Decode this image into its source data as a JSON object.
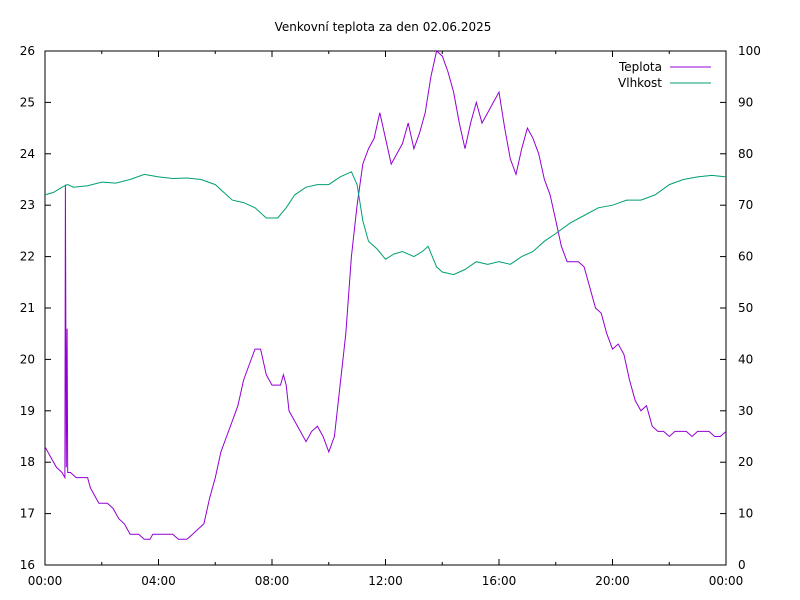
{
  "chart_data": {
    "type": "line",
    "title": "Venkovní teplota za den 02.06.2025",
    "xlabel": "",
    "ylabel": "",
    "y2label": "",
    "x_ticks": [
      "00:00",
      "04:00",
      "08:00",
      "12:00",
      "16:00",
      "20:00",
      "00:00"
    ],
    "xlim_hours": [
      0,
      24
    ],
    "ylim": [
      16,
      26
    ],
    "y_ticks": [
      16,
      17,
      18,
      19,
      20,
      21,
      22,
      23,
      24,
      25,
      26
    ],
    "y2lim": [
      0,
      100
    ],
    "y2_ticks": [
      0,
      10,
      20,
      30,
      40,
      50,
      60,
      70,
      80,
      90,
      100
    ],
    "grid": false,
    "legend_position": "top-right",
    "series": [
      {
        "name": "Teplota",
        "axis": "left",
        "color": "#9400d3",
        "points": [
          [
            0.0,
            18.3
          ],
          [
            0.2,
            18.1
          ],
          [
            0.4,
            17.9
          ],
          [
            0.6,
            17.8
          ],
          [
            0.7,
            17.7
          ],
          [
            0.72,
            23.4
          ],
          [
            0.75,
            17.9
          ],
          [
            0.78,
            20.6
          ],
          [
            0.8,
            17.8
          ],
          [
            0.9,
            17.8
          ],
          [
            1.1,
            17.7
          ],
          [
            1.5,
            17.7
          ],
          [
            1.6,
            17.5
          ],
          [
            1.8,
            17.3
          ],
          [
            1.9,
            17.2
          ],
          [
            2.2,
            17.2
          ],
          [
            2.4,
            17.1
          ],
          [
            2.6,
            16.9
          ],
          [
            2.8,
            16.8
          ],
          [
            3.0,
            16.6
          ],
          [
            3.3,
            16.6
          ],
          [
            3.5,
            16.5
          ],
          [
            3.7,
            16.5
          ],
          [
            3.8,
            16.6
          ],
          [
            4.2,
            16.6
          ],
          [
            4.5,
            16.6
          ],
          [
            4.7,
            16.5
          ],
          [
            5.0,
            16.5
          ],
          [
            5.2,
            16.6
          ],
          [
            5.4,
            16.7
          ],
          [
            5.6,
            16.8
          ],
          [
            5.8,
            17.3
          ],
          [
            6.0,
            17.7
          ],
          [
            6.2,
            18.2
          ],
          [
            6.4,
            18.5
          ],
          [
            6.6,
            18.8
          ],
          [
            6.8,
            19.1
          ],
          [
            7.0,
            19.6
          ],
          [
            7.2,
            19.9
          ],
          [
            7.4,
            20.2
          ],
          [
            7.6,
            20.2
          ],
          [
            7.8,
            19.7
          ],
          [
            8.0,
            19.5
          ],
          [
            8.3,
            19.5
          ],
          [
            8.4,
            19.7
          ],
          [
            8.5,
            19.5
          ],
          [
            8.6,
            19.0
          ],
          [
            8.8,
            18.8
          ],
          [
            9.0,
            18.6
          ],
          [
            9.2,
            18.4
          ],
          [
            9.4,
            18.6
          ],
          [
            9.6,
            18.7
          ],
          [
            9.8,
            18.5
          ],
          [
            10.0,
            18.2
          ],
          [
            10.2,
            18.5
          ],
          [
            10.4,
            19.5
          ],
          [
            10.6,
            20.5
          ],
          [
            10.8,
            22.0
          ],
          [
            11.0,
            23.0
          ],
          [
            11.2,
            23.8
          ],
          [
            11.4,
            24.1
          ],
          [
            11.6,
            24.3
          ],
          [
            11.8,
            24.8
          ],
          [
            12.0,
            24.3
          ],
          [
            12.2,
            23.8
          ],
          [
            12.4,
            24.0
          ],
          [
            12.6,
            24.2
          ],
          [
            12.8,
            24.6
          ],
          [
            13.0,
            24.1
          ],
          [
            13.2,
            24.4
          ],
          [
            13.4,
            24.8
          ],
          [
            13.6,
            25.5
          ],
          [
            13.8,
            26.0
          ],
          [
            14.0,
            25.9
          ],
          [
            14.2,
            25.6
          ],
          [
            14.4,
            25.2
          ],
          [
            14.6,
            24.6
          ],
          [
            14.8,
            24.1
          ],
          [
            15.0,
            24.6
          ],
          [
            15.2,
            25.0
          ],
          [
            15.4,
            24.6
          ],
          [
            15.6,
            24.8
          ],
          [
            15.8,
            25.0
          ],
          [
            16.0,
            25.2
          ],
          [
            16.2,
            24.5
          ],
          [
            16.4,
            23.9
          ],
          [
            16.6,
            23.6
          ],
          [
            16.8,
            24.1
          ],
          [
            17.0,
            24.5
          ],
          [
            17.2,
            24.3
          ],
          [
            17.4,
            24.0
          ],
          [
            17.6,
            23.5
          ],
          [
            17.8,
            23.2
          ],
          [
            18.0,
            22.7
          ],
          [
            18.2,
            22.2
          ],
          [
            18.4,
            21.9
          ],
          [
            18.6,
            21.9
          ],
          [
            18.8,
            21.9
          ],
          [
            19.0,
            21.8
          ],
          [
            19.2,
            21.4
          ],
          [
            19.4,
            21.0
          ],
          [
            19.6,
            20.9
          ],
          [
            19.8,
            20.5
          ],
          [
            20.0,
            20.2
          ],
          [
            20.2,
            20.3
          ],
          [
            20.4,
            20.1
          ],
          [
            20.6,
            19.6
          ],
          [
            20.8,
            19.2
          ],
          [
            21.0,
            19.0
          ],
          [
            21.2,
            19.1
          ],
          [
            21.4,
            18.7
          ],
          [
            21.6,
            18.6
          ],
          [
            21.8,
            18.6
          ],
          [
            22.0,
            18.5
          ],
          [
            22.2,
            18.6
          ],
          [
            22.4,
            18.6
          ],
          [
            22.6,
            18.6
          ],
          [
            22.8,
            18.5
          ],
          [
            23.0,
            18.6
          ],
          [
            23.2,
            18.6
          ],
          [
            23.4,
            18.6
          ],
          [
            23.6,
            18.5
          ],
          [
            23.8,
            18.5
          ],
          [
            24.0,
            18.6
          ]
        ]
      },
      {
        "name": "Vlhkost",
        "axis": "right",
        "color": "#009e73",
        "points": [
          [
            0.0,
            72
          ],
          [
            0.3,
            72.5
          ],
          [
            0.6,
            73.5
          ],
          [
            0.8,
            74
          ],
          [
            1.0,
            73.5
          ],
          [
            1.5,
            73.8
          ],
          [
            2.0,
            74.5
          ],
          [
            2.5,
            74.3
          ],
          [
            3.0,
            75
          ],
          [
            3.5,
            76
          ],
          [
            4.0,
            75.5
          ],
          [
            4.5,
            75.2
          ],
          [
            5.0,
            75.3
          ],
          [
            5.5,
            75.0
          ],
          [
            6.0,
            74
          ],
          [
            6.3,
            72.5
          ],
          [
            6.6,
            71
          ],
          [
            7.0,
            70.5
          ],
          [
            7.4,
            69.5
          ],
          [
            7.8,
            67.5
          ],
          [
            8.2,
            67.5
          ],
          [
            8.5,
            69.5
          ],
          [
            8.8,
            72
          ],
          [
            9.2,
            73.5
          ],
          [
            9.6,
            74
          ],
          [
            10.0,
            74
          ],
          [
            10.4,
            75.5
          ],
          [
            10.8,
            76.5
          ],
          [
            11.0,
            74
          ],
          [
            11.2,
            67
          ],
          [
            11.4,
            63
          ],
          [
            11.7,
            61.5
          ],
          [
            12.0,
            59.5
          ],
          [
            12.3,
            60.5
          ],
          [
            12.6,
            61
          ],
          [
            13.0,
            60
          ],
          [
            13.3,
            61
          ],
          [
            13.5,
            62
          ],
          [
            13.8,
            58
          ],
          [
            14.0,
            57
          ],
          [
            14.4,
            56.5
          ],
          [
            14.8,
            57.5
          ],
          [
            15.2,
            59
          ],
          [
            15.6,
            58.5
          ],
          [
            16.0,
            59
          ],
          [
            16.4,
            58.5
          ],
          [
            16.8,
            60
          ],
          [
            17.2,
            61
          ],
          [
            17.6,
            63
          ],
          [
            18.0,
            64.5
          ],
          [
            18.5,
            66.5
          ],
          [
            19.0,
            68
          ],
          [
            19.5,
            69.5
          ],
          [
            20.0,
            70
          ],
          [
            20.5,
            71
          ],
          [
            21.0,
            71
          ],
          [
            21.5,
            72
          ],
          [
            22.0,
            74
          ],
          [
            22.5,
            75
          ],
          [
            23.0,
            75.5
          ],
          [
            23.5,
            75.8
          ],
          [
            24.0,
            75.5
          ]
        ]
      }
    ]
  }
}
